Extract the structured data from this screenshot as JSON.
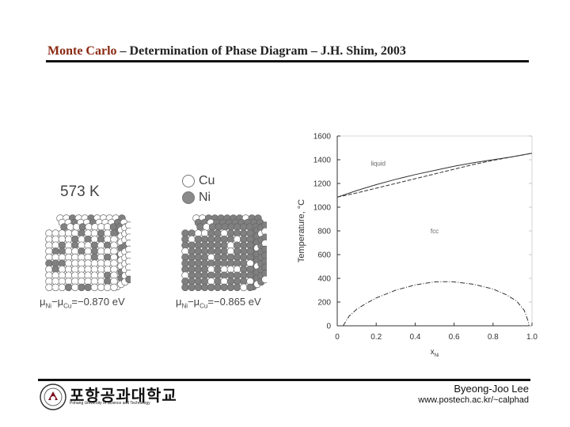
{
  "slide": {
    "title_lead": "Monte Carlo",
    "title_rest": " – Determination of Phase Diagram – J.H. Shim, 2003"
  },
  "figure": {
    "temperature_label": "573 K",
    "legend": [
      {
        "label": "Cu",
        "color": "#ffffff"
      },
      {
        "label": "Ni",
        "color": "#8a8a8a"
      }
    ],
    "crystals": [
      {
        "mu": "μ",
        "sub1": "Ni",
        "minus": "−μ",
        "sub2": "Cu",
        "value": "=−0.870 eV"
      },
      {
        "mu": "μ",
        "sub1": "Ni",
        "minus": "−μ",
        "sub2": "Cu",
        "value": "=−0.865 eV"
      }
    ]
  },
  "chart_data": {
    "type": "line",
    "ylabel": "Temperature, °C",
    "xlabel": "x",
    "xlabel_sub": "Ni",
    "xlim": [
      0,
      1
    ],
    "ylim": [
      0,
      1600
    ],
    "xticks": [
      "0",
      "0.2",
      "0.4",
      "0.6",
      "0.8",
      "1.0"
    ],
    "yticks": [
      "0",
      "200",
      "400",
      "600",
      "800",
      "1000",
      "1200",
      "1400",
      "1600"
    ],
    "annotations": [
      {
        "text": "liquid",
        "x": 0.21,
        "y": 1350
      },
      {
        "text": "fcc",
        "x": 0.5,
        "y": 780
      }
    ],
    "series": [
      {
        "values": [
          [
            0,
            1085
          ],
          [
            0.1,
            1140
          ],
          [
            0.2,
            1190
          ],
          [
            0.3,
            1235
          ],
          [
            0.4,
            1275
          ],
          [
            0.5,
            1310
          ],
          [
            0.6,
            1345
          ],
          [
            0.7,
            1375
          ],
          [
            0.8,
            1400
          ],
          [
            0.9,
            1425
          ],
          [
            1.0,
            1455
          ]
        ]
      },
      {
        "values": [
          [
            0,
            1085
          ],
          [
            0.1,
            1120
          ],
          [
            0.2,
            1160
          ],
          [
            0.3,
            1200
          ],
          [
            0.4,
            1240
          ],
          [
            0.5,
            1280
          ],
          [
            0.6,
            1320
          ],
          [
            0.7,
            1360
          ],
          [
            0.8,
            1395
          ],
          [
            0.9,
            1425
          ],
          [
            1.0,
            1455
          ]
        ]
      },
      {
        "values": [
          [
            0.03,
            0
          ],
          [
            0.06,
            80
          ],
          [
            0.1,
            140
          ],
          [
            0.15,
            190
          ],
          [
            0.2,
            235
          ],
          [
            0.3,
            300
          ],
          [
            0.4,
            345
          ],
          [
            0.5,
            370
          ],
          [
            0.55,
            372
          ],
          [
            0.6,
            370
          ],
          [
            0.7,
            350
          ],
          [
            0.8,
            310
          ],
          [
            0.87,
            260
          ],
          [
            0.92,
            210
          ],
          [
            0.96,
            130
          ],
          [
            0.98,
            40
          ],
          [
            0.985,
            0
          ]
        ]
      }
    ]
  },
  "footer": {
    "author": "Byeong-Joo Lee",
    "url": "www.postech.ac.kr/~calphad",
    "logo_korean": "포항공과대학교",
    "logo_english": "Pohang University of Science and Technology"
  }
}
